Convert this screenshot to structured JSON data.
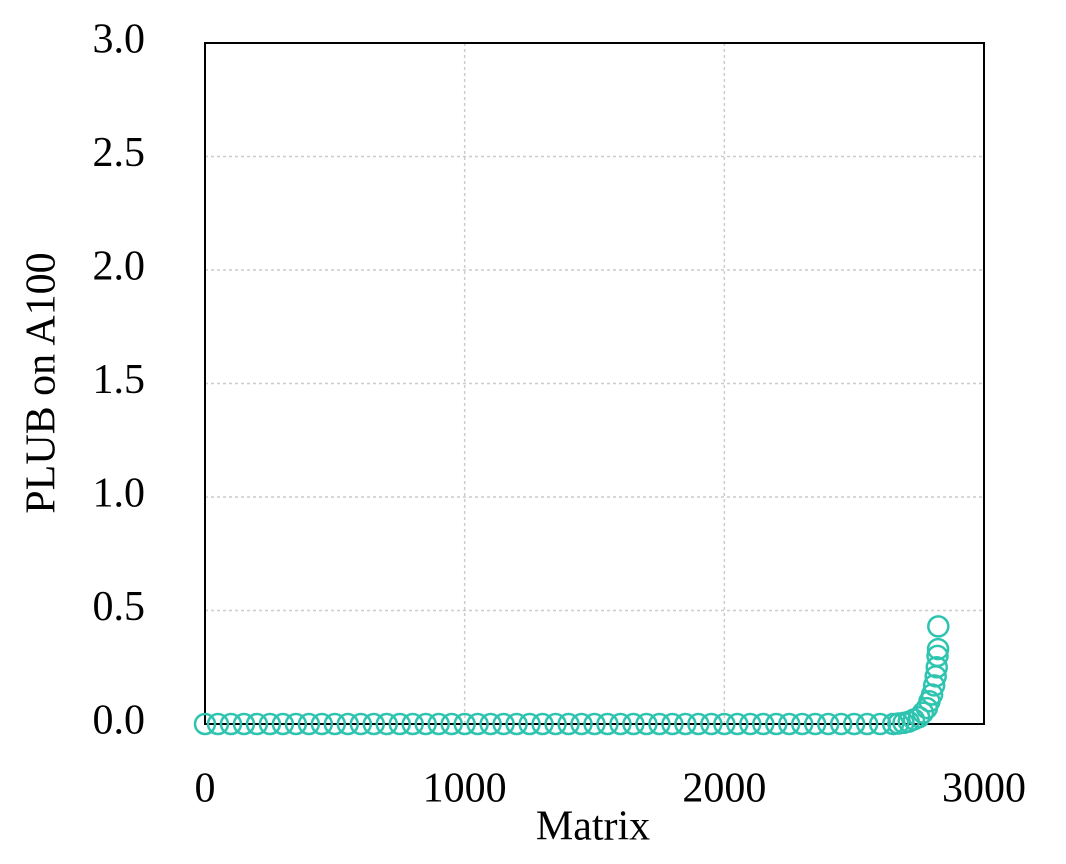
{
  "chart_data": {
    "type": "scatter",
    "xlabel": "Matrix",
    "ylabel": "PLUB on A100",
    "x": [
      0,
      50,
      100,
      150,
      200,
      250,
      300,
      350,
      400,
      450,
      500,
      550,
      600,
      650,
      700,
      750,
      800,
      850,
      900,
      950,
      1000,
      1050,
      1100,
      1150,
      1200,
      1250,
      1300,
      1350,
      1400,
      1450,
      1500,
      1550,
      1600,
      1650,
      1700,
      1750,
      1800,
      1850,
      1900,
      1950,
      2000,
      2050,
      2100,
      2150,
      2200,
      2250,
      2300,
      2350,
      2400,
      2450,
      2500,
      2550,
      2600,
      2650,
      2670,
      2690,
      2710,
      2730,
      2750,
      2765,
      2780,
      2790,
      2800,
      2808,
      2814,
      2818,
      2821,
      2823,
      2824
    ],
    "values": [
      0,
      0,
      0,
      0,
      0,
      0,
      0,
      0,
      0,
      0,
      0,
      0,
      0,
      0,
      0,
      0,
      0,
      0,
      0,
      0,
      0,
      0,
      0,
      0,
      0,
      0,
      0,
      0,
      0,
      0,
      0,
      0,
      0,
      0,
      0,
      0,
      0,
      0,
      0,
      0,
      0,
      0,
      0,
      0,
      0,
      0,
      0,
      0,
      0,
      0,
      0,
      0,
      0,
      0,
      0.002,
      0.005,
      0.01,
      0.02,
      0.03,
      0.05,
      0.07,
      0.1,
      0.13,
      0.17,
      0.21,
      0.25,
      0.3,
      0.33,
      0.43
    ],
    "color": "#2ec4b0",
    "xlim": [
      0,
      3000
    ],
    "xticks": [
      0,
      1000,
      2000,
      3000
    ],
    "ylim": [
      0,
      3
    ],
    "yticks": [
      {
        "value": 0,
        "label": "0.0"
      },
      {
        "value": 0.5,
        "label": "0.5"
      },
      {
        "value": 1,
        "label": "1.0"
      },
      {
        "value": 1.5,
        "label": "1.5"
      },
      {
        "value": 2,
        "label": "2.0"
      },
      {
        "value": 2.5,
        "label": "2.5"
      },
      {
        "value": 3,
        "label": "3.0"
      }
    ],
    "grid": true
  }
}
